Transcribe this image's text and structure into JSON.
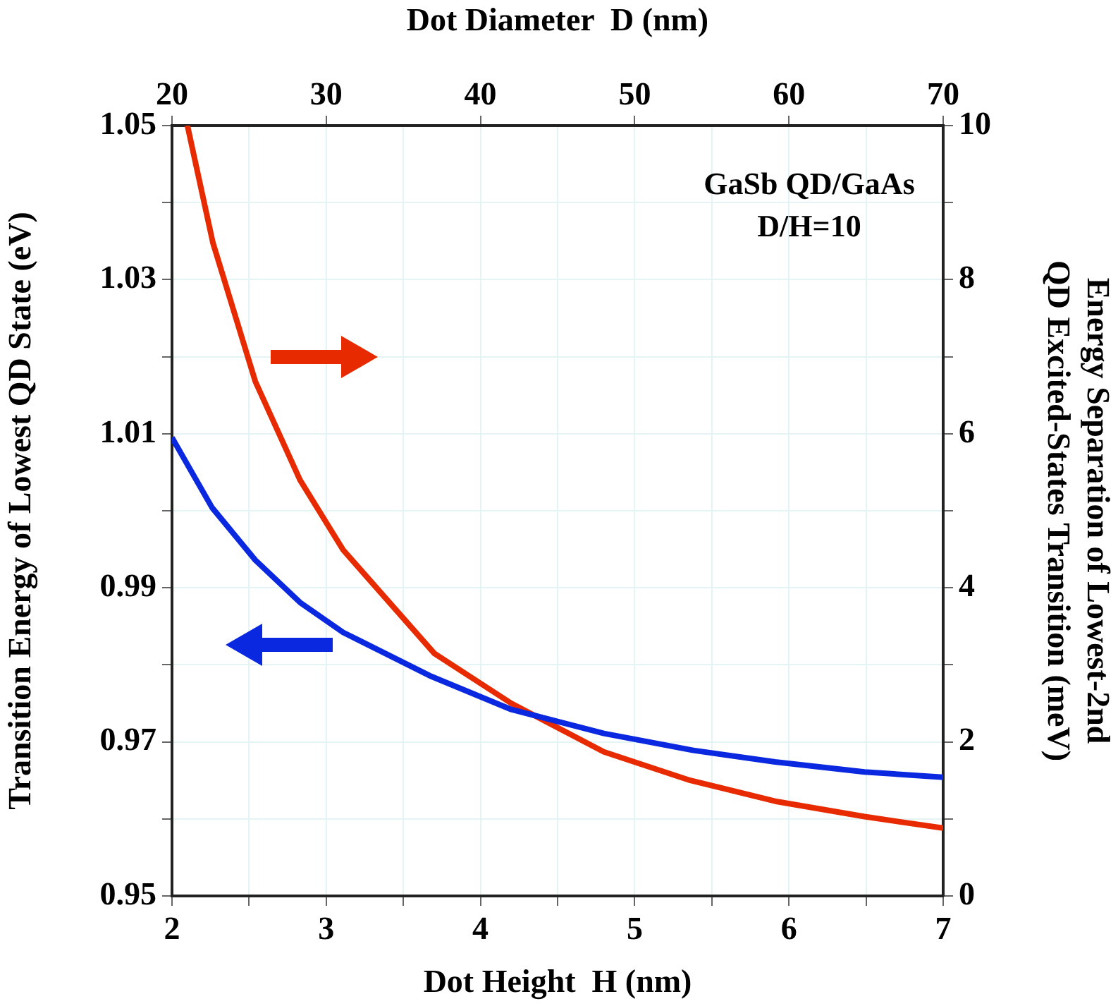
{
  "chart_data": {
    "type": "line",
    "xlabel": "Dot Height  H (nm)",
    "ylabel": "Transition Energy of Lowest QD State (eV)",
    "y2label": "Energy Separation of Lowest-2nd\nQD Excited-States Transition (meV)",
    "x2label": "Dot Diameter  D (nm)",
    "annotations": [
      "GaSb QD/GaAs",
      "D/H=10"
    ],
    "series": [
      {
        "color": "#0a28e0",
        "x": [
          2,
          2.26,
          2.54,
          2.83,
          3.11,
          3.67,
          4.2,
          4.8,
          5.38,
          5.91,
          6.49,
          7
        ],
        "values": [
          1.0095,
          1.0004,
          0.9936,
          0.9881,
          0.9842,
          0.9786,
          0.9742,
          0.9711,
          0.9689,
          0.9674,
          0.9661,
          0.9654
        ]
      },
      {
        "color": "#e82a00",
        "axis": "y2",
        "x": [
          2.1,
          2.265,
          2.54,
          2.83,
          3.11,
          3.7,
          4.2,
          4.8,
          5.36,
          5.91,
          6.49,
          7
        ],
        "values": [
          10.0,
          8.48,
          6.68,
          5.4,
          4.49,
          3.15,
          2.5,
          1.87,
          1.5,
          1.23,
          1.03,
          0.88
        ]
      }
    ],
    "xlim": [
      2,
      7
    ],
    "xticks": [
      2,
      {
        "value": 2.5,
        "label": null
      },
      3,
      {
        "value": 3.5,
        "label": null
      },
      4,
      {
        "value": 4.5,
        "label": null
      },
      5,
      {
        "value": 5.5,
        "label": null
      },
      6,
      {
        "value": 6.5,
        "label": null
      },
      7
    ],
    "x2lim": [
      20,
      70
    ],
    "x2ticks": [
      20,
      30,
      40,
      50,
      60,
      70
    ],
    "ylim": [
      0.95,
      1.05
    ],
    "yticks": [
      0.95,
      {
        "value": 0.96,
        "label": null
      },
      0.97,
      {
        "value": 0.98,
        "label": null
      },
      0.99,
      {
        "value": 1.0,
        "label": null
      },
      1.01,
      {
        "value": 1.02,
        "label": null
      },
      1.03,
      {
        "value": 1.04,
        "label": null
      },
      1.05
    ],
    "y2lim": [
      0,
      10
    ],
    "y2ticks": [
      0,
      {
        "value": 1,
        "label": null
      },
      2,
      {
        "value": 3,
        "label": null
      },
      4,
      {
        "value": 5,
        "label": null
      },
      6,
      {
        "value": 7,
        "label": null
      },
      8,
      {
        "value": 9,
        "label": null
      },
      10
    ],
    "grid": true,
    "line_style": "solid",
    "marker": "none"
  }
}
